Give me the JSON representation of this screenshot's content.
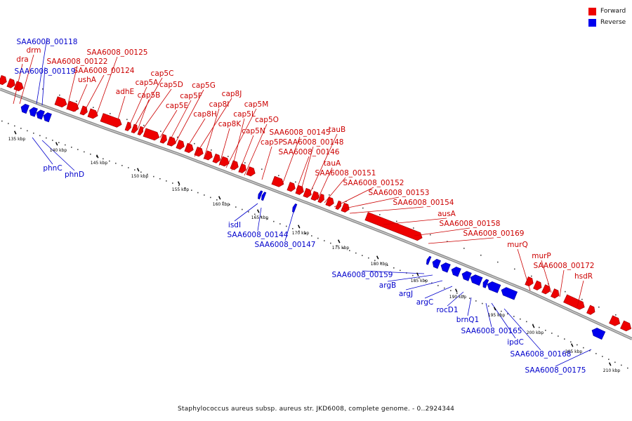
{
  "legend": [
    {
      "label": "Forward",
      "color": "#ee0000"
    },
    {
      "label": "Reverse",
      "color": "#0000ee"
    }
  ],
  "caption": "Staphylococcus aureus subsp. aureus str. JKD6008, complete genome. - 0..2924344",
  "ticks": [
    "135 kbp",
    "140 kbp",
    "145 kbp",
    "150 kbp",
    "155 kbp",
    "160 kbp",
    "165 kbp",
    "170 kbp",
    "175 kbp",
    "180 kbp",
    "185 kbp",
    "190 kbp",
    "195 kbp",
    "200 kbp",
    "205 kbp",
    "210 kbp"
  ],
  "forward_labels": [
    "dra",
    "drm",
    "SAA6008_00122",
    "SAA6008_00125",
    "SAA6008_00124",
    "ushA",
    "adhE",
    "cap5C",
    "cap5A",
    "cap5D",
    "cap5B",
    "cap5G",
    "cap5F",
    "cap5E",
    "cap8J",
    "cap8I",
    "cap8H",
    "cap5M",
    "cap5L",
    "cap8K",
    "cap5O",
    "cap5N",
    "SAA6008_00145",
    "tauB",
    "cap5P",
    "SAA6008_00148",
    "SAA6008_00146",
    "tauA",
    "SAA6008_00151",
    "SAA6008_00152",
    "SAA6008_00153",
    "SAA6008_00154",
    "ausA",
    "SAA6008_00158",
    "SAA6008_00169",
    "murQ",
    "murP",
    "SAA6008_00172",
    "hsdR"
  ],
  "reverse_labels": [
    "SAA6008_00118",
    "SAA6008_00119",
    "phnC",
    "phnD",
    "isdI",
    "SAA6008_00144",
    "SAA6008_00147",
    "SAA6008_00159",
    "argB",
    "argJ",
    "argC",
    "rocD1",
    "brnQ1",
    "SAA6008_00165",
    "ipdC",
    "SAA6008_00168",
    "SAA6008_00175"
  ]
}
